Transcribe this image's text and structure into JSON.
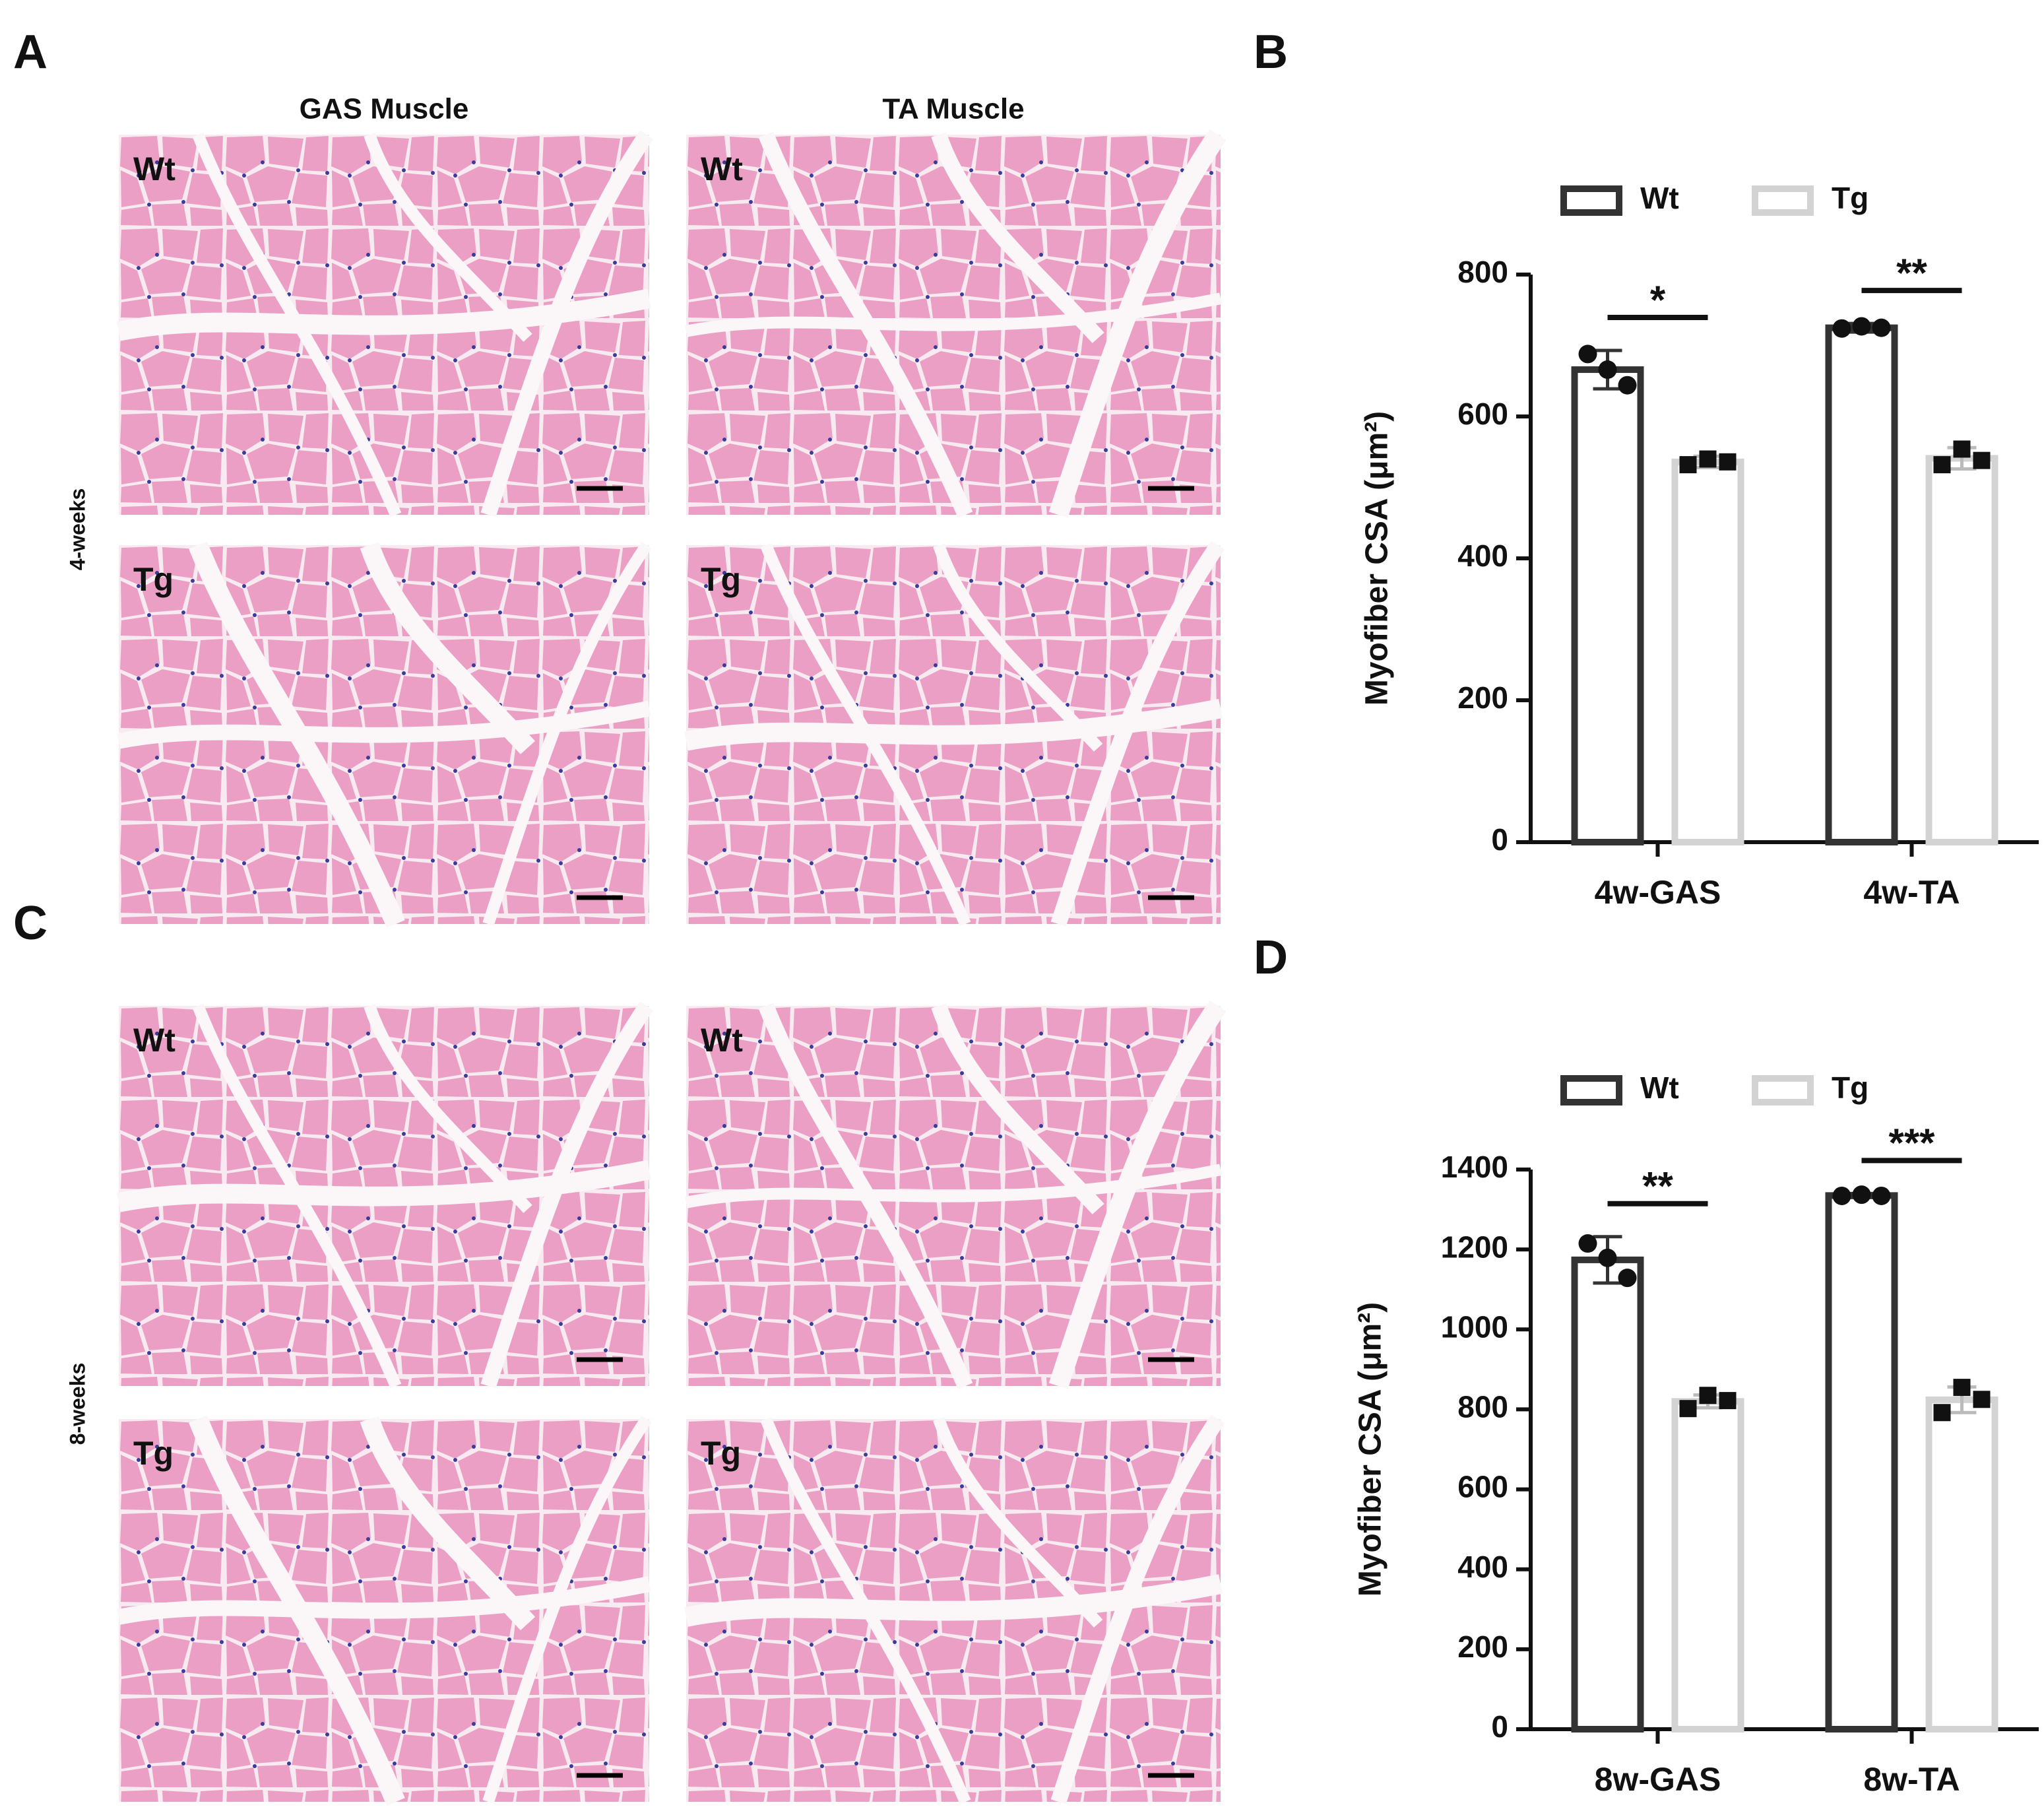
{
  "figure": {
    "panels": [
      {
        "letter": "A",
        "columns": [
          "GAS Muscle",
          "TA Muscle"
        ],
        "row_label": "4-weeks",
        "images": [
          "Wt",
          "Wt",
          "Tg",
          "Tg"
        ]
      },
      {
        "letter": "C",
        "row_label": "8-weeks",
        "images": [
          "Wt",
          "Wt",
          "Tg",
          "Tg"
        ]
      }
    ]
  },
  "chart_data": [
    {
      "type": "bar",
      "panel_label": "B",
      "y_label": "Myofiber CSA (μm²)",
      "categories": [
        "4w-GAS",
        "4w-TA"
      ],
      "series": [
        {
          "name": "Wt",
          "color": "#333333",
          "marker": "circle",
          "values": [
            666,
            725
          ],
          "errors": [
            27,
            6
          ],
          "points": [
            [
              688,
              666,
              644
            ],
            [
              724,
              727,
              725
            ]
          ]
        },
        {
          "name": "Tg",
          "color": "#d3d3d3",
          "marker": "square",
          "values": [
            536,
            541
          ],
          "errors": [
            8,
            15
          ],
          "points": [
            [
              532,
              540,
              536
            ],
            [
              532,
              554,
              538
            ]
          ]
        }
      ],
      "significance": [
        "*",
        "**"
      ],
      "ylim": [
        0,
        800
      ],
      "yticks": [
        0,
        200,
        400,
        600,
        800
      ]
    },
    {
      "type": "bar",
      "panel_label": "D",
      "y_label": "Myofiber CSA (μm²)",
      "categories": [
        "8w-GAS",
        "8w-TA"
      ],
      "series": [
        {
          "name": "Wt",
          "color": "#333333",
          "marker": "circle",
          "values": [
            1174,
            1335
          ],
          "errors": [
            58,
            5
          ],
          "points": [
            [
              1215,
              1179,
              1129
            ],
            [
              1334,
              1337,
              1334
            ]
          ]
        },
        {
          "name": "Tg",
          "color": "#d3d3d3",
          "marker": "square",
          "values": [
            820,
            824
          ],
          "errors": [
            16,
            32
          ],
          "points": [
            [
              802,
              835,
              822
            ],
            [
              792,
              855,
              825
            ]
          ]
        }
      ],
      "significance": [
        "**",
        "***"
      ],
      "ylim": [
        0,
        1400
      ],
      "yticks": [
        0,
        200,
        400,
        600,
        800,
        1000,
        1200,
        1400
      ]
    }
  ]
}
